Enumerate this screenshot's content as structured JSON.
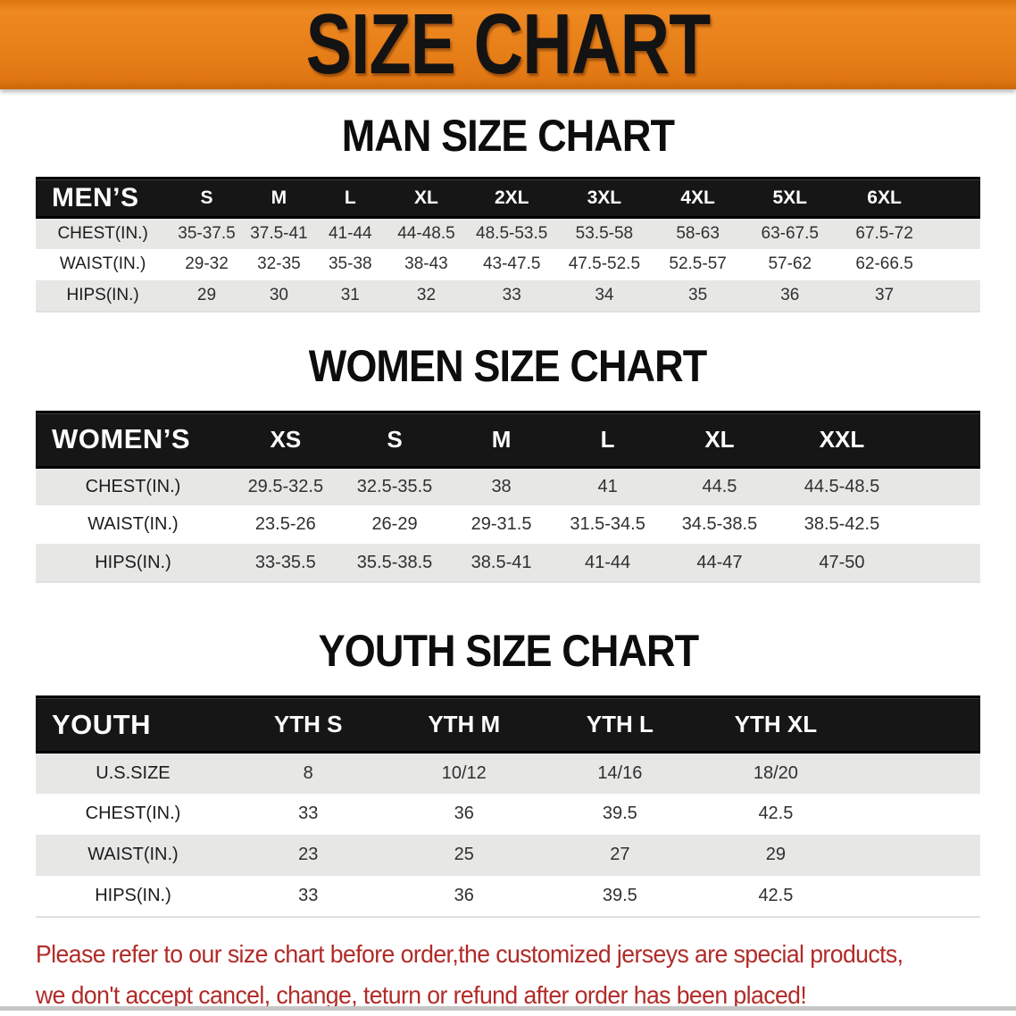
{
  "banner": {
    "title": "SIZE CHART",
    "bg_color": "#e8801a",
    "text_color": "#131313"
  },
  "colors": {
    "banner_orange": "#e8801a",
    "header_bar_black": "#161616",
    "striped_row_gray": "#e7e7e6",
    "footer_red": "#b12b28"
  },
  "sections": [
    {
      "id": "men",
      "heading": "MAN SIZE CHART",
      "table": {
        "header_label": "MEN’S",
        "sizes": [
          "S",
          "M",
          "L",
          "XL",
          "2XL",
          "3XL",
          "4XL",
          "5XL",
          "6XL"
        ],
        "rows": [
          {
            "label": "CHEST(IN.)",
            "values": [
              "35-37.5",
              "37.5-41",
              "41-44",
              "44-48.5",
              "48.5-53.5",
              "53.5-58",
              "58-63",
              "63-67.5",
              "67.5-72"
            ]
          },
          {
            "label": "WAIST(IN.)",
            "values": [
              "29-32",
              "32-35",
              "35-38",
              "38-43",
              "43-47.5",
              "47.5-52.5",
              "52.5-57",
              "57-62",
              "62-66.5"
            ]
          },
          {
            "label": "HIPS(IN.)",
            "values": [
              "29",
              "30",
              "31",
              "32",
              "33",
              "34",
              "35",
              "36",
              "37"
            ]
          }
        ]
      }
    },
    {
      "id": "women",
      "heading": "WOMEN SIZE CHART",
      "table": {
        "header_label": "WOMEN’S",
        "sizes": [
          "XS",
          "S",
          "M",
          "L",
          "XL",
          "XXL"
        ],
        "rows": [
          {
            "label": "CHEST(IN.)",
            "values": [
              "29.5-32.5",
              "32.5-35.5",
              "38",
              "41",
              "44.5",
              "44.5-48.5"
            ]
          },
          {
            "label": "WAIST(IN.)",
            "values": [
              "23.5-26",
              "26-29",
              "29-31.5",
              "31.5-34.5",
              "34.5-38.5",
              "38.5-42.5"
            ]
          },
          {
            "label": "HIPS(IN.)",
            "values": [
              "33-35.5",
              "35.5-38.5",
              "38.5-41",
              "41-44",
              "44-47",
              "47-50"
            ]
          }
        ]
      }
    },
    {
      "id": "youth",
      "heading": "YOUTH SIZE CHART",
      "table": {
        "header_label": "YOUTH",
        "sizes": [
          "YTH S",
          "YTH M",
          "YTH L",
          "YTH XL"
        ],
        "rows": [
          {
            "label": "U.S.SIZE",
            "values": [
              "8",
              "10/12",
              "14/16",
              "18/20"
            ]
          },
          {
            "label": "CHEST(IN.)",
            "values": [
              "33",
              "36",
              "39.5",
              "42.5"
            ]
          },
          {
            "label": "WAIST(IN.)",
            "values": [
              "23",
              "25",
              "27",
              "29"
            ]
          },
          {
            "label": "HIPS(IN.)",
            "values": [
              "33",
              "36",
              "39.5",
              "42.5"
            ]
          }
        ]
      }
    }
  ],
  "footer": {
    "lines": [
      "Please refer to our size chart before order,the customized jerseys are special products,",
      "we don't accept cancel, change, teturn or refund after order has been placed!"
    ]
  }
}
